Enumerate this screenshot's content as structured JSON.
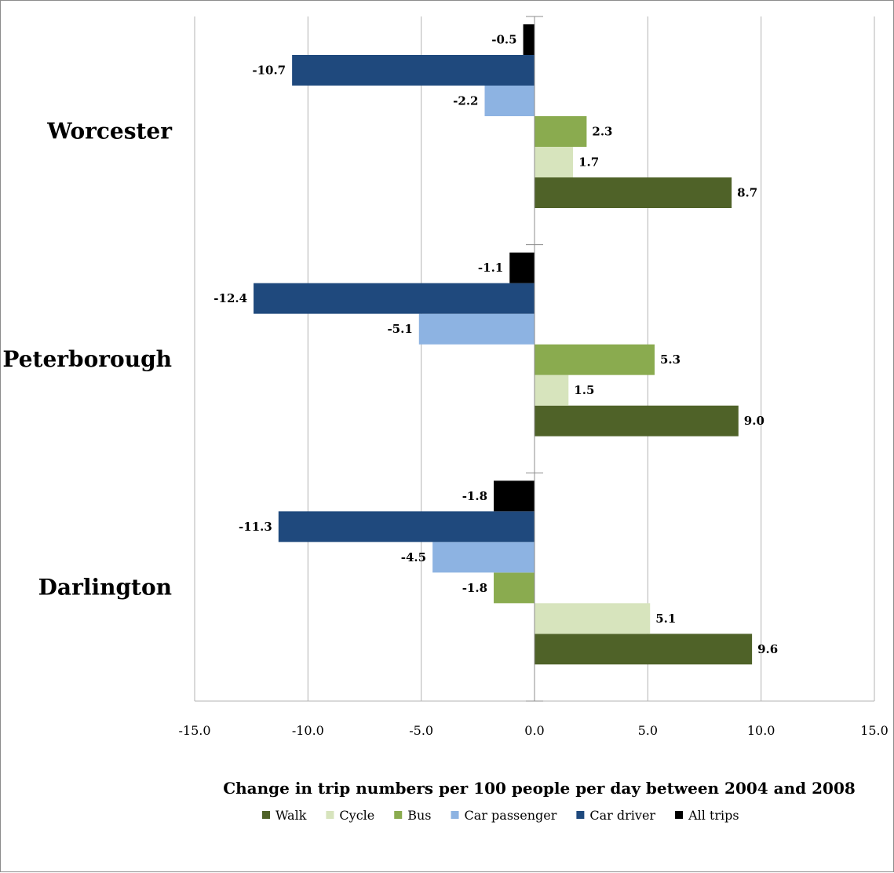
{
  "chart_data": {
    "type": "bar",
    "orientation": "horizontal",
    "categories": [
      "Worcester",
      "Peterborough",
      "Darlington"
    ],
    "series": [
      {
        "name": "Walk",
        "color": "#4f6228",
        "values": [
          8.7,
          9.0,
          9.6
        ]
      },
      {
        "name": "Cycle",
        "color": "#d7e4bd",
        "values": [
          1.7,
          1.5,
          5.1
        ]
      },
      {
        "name": "Bus",
        "color": "#8aab4f",
        "values": [
          2.3,
          5.3,
          -1.8
        ]
      },
      {
        "name": "Car passenger",
        "color": "#8db3e2",
        "values": [
          -2.2,
          -5.1,
          -4.5
        ]
      },
      {
        "name": "Car driver",
        "color": "#1f497d",
        "values": [
          -10.7,
          -12.4,
          -11.3
        ]
      },
      {
        "name": "All trips",
        "color": "#000000",
        "values": [
          -0.5,
          -1.1,
          -1.8
        ]
      }
    ],
    "xlabel": "Change in trip numbers per 100 people per day between 2004 and 2008",
    "xlim": [
      -15,
      15
    ],
    "xticks": [
      -15,
      -10,
      -5,
      0,
      5,
      10,
      15
    ],
    "tick_labels": [
      "-15.0",
      "-10.0",
      "-5.0",
      "0.0",
      "5.0",
      "10.0",
      "15.0"
    ],
    "data_labels": [
      [
        "8.7",
        "1.7",
        "2.3",
        "-2.2",
        "-10.7",
        "-0.5"
      ],
      [
        "9.0",
        "1.5",
        "5.3",
        "-5.1",
        "-12.4",
        "-1.1"
      ],
      [
        "9.6",
        "5.1",
        "-1.8",
        "-4.5",
        "-11.3",
        "-1.8"
      ]
    ],
    "grid": true,
    "legend": "bottom"
  }
}
